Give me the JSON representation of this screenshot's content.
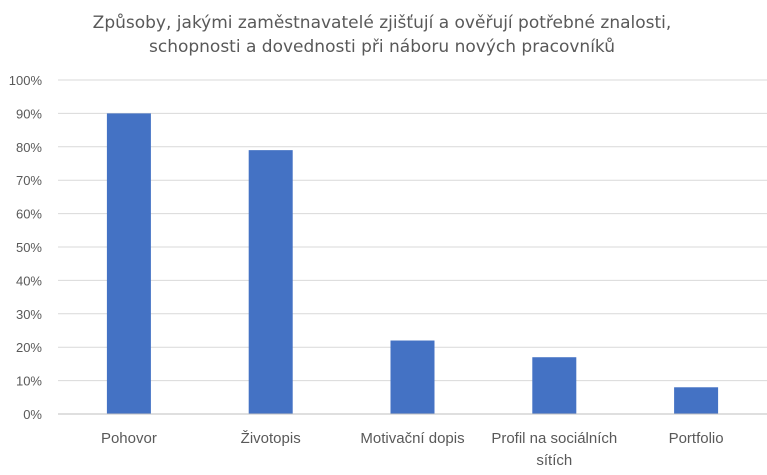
{
  "chart_data": {
    "type": "bar",
    "title_lines": [
      "Způsoby, jakými zaměstnavatelé zjišťují a ověřují potřebné znalosti,",
      "schopnosti a dovednosti při náboru nových pracovníků"
    ],
    "categories": [
      [
        "Pohovor"
      ],
      [
        "Životopis"
      ],
      [
        "Motivační dopis"
      ],
      [
        "Profil na sociálních",
        "sítích"
      ],
      [
        "Portfolio"
      ]
    ],
    "values": [
      0.9,
      0.79,
      0.22,
      0.17,
      0.08
    ],
    "ylim": [
      0,
      1
    ],
    "yticks": [
      0,
      0.1,
      0.2,
      0.3,
      0.4,
      0.5,
      0.6,
      0.7,
      0.8,
      0.9,
      1.0
    ],
    "ytick_labels": [
      "0%",
      "10%",
      "20%",
      "30%",
      "40%",
      "50%",
      "60%",
      "70%",
      "80%",
      "90%",
      "100%"
    ],
    "grid": true,
    "xlabel": "",
    "ylabel": "",
    "color": "#4472c4"
  }
}
